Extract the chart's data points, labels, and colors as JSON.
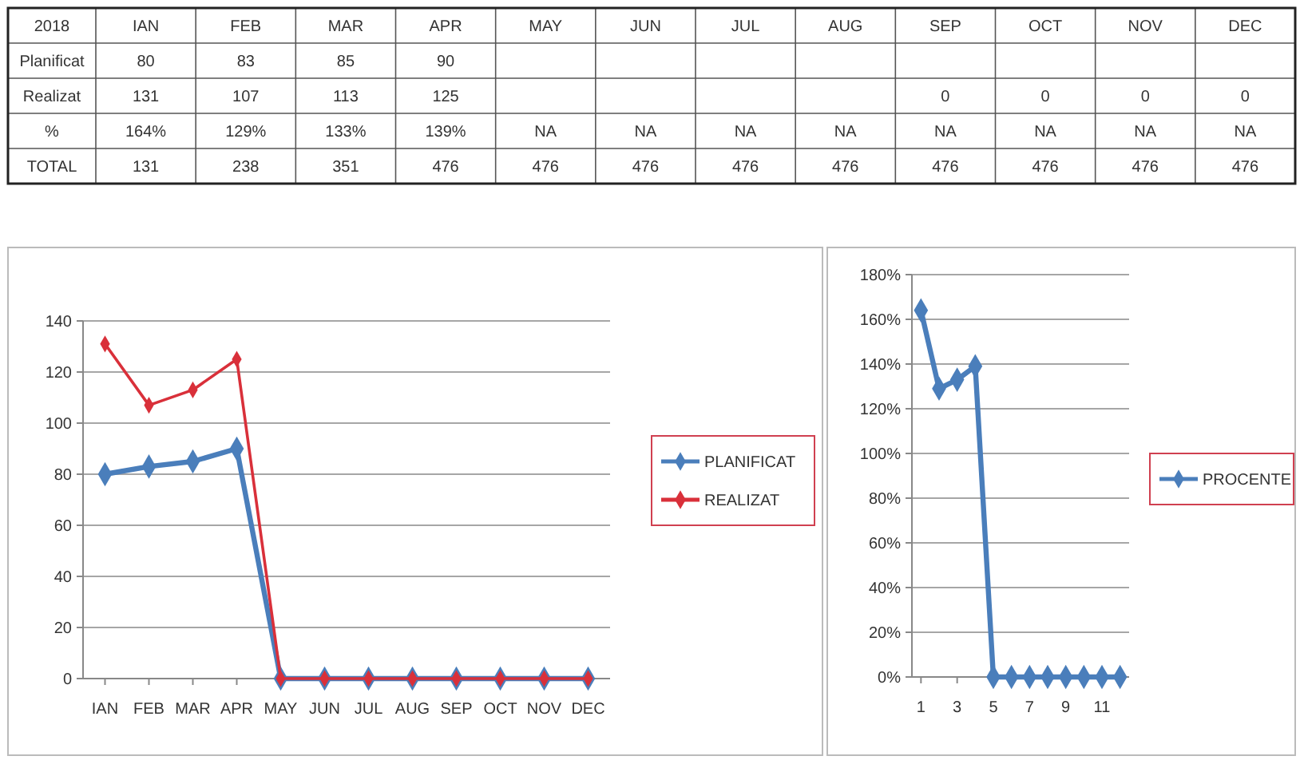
{
  "chart_data": [
    {
      "type": "other",
      "title": "2018",
      "categories": [
        "IAN",
        "FEB",
        "MAR",
        "APR",
        "MAY",
        "JUN",
        "JUL",
        "AUG",
        "SEP",
        "OCT",
        "NOV",
        "DEC"
      ],
      "y_categories": [
        "Planificat",
        "Realizat",
        "%",
        "TOTAL"
      ],
      "cell_labels": [
        [
          "80",
          "83",
          "85",
          "90",
          null,
          null,
          null,
          null,
          null,
          null,
          null,
          null
        ],
        [
          "131",
          "107",
          "113",
          "125",
          null,
          null,
          null,
          null,
          "0",
          "0",
          "0",
          "0"
        ],
        [
          "164%",
          "129%",
          "133%",
          "139%",
          "NA",
          "NA",
          "NA",
          "NA",
          "NA",
          "NA",
          "NA",
          "NA"
        ],
        [
          "131",
          "238",
          "351",
          "476",
          "476",
          "476",
          "476",
          "476",
          "476",
          "476",
          "476",
          "476"
        ]
      ]
    },
    {
      "type": "line",
      "categories": [
        "IAN",
        "FEB",
        "MAR",
        "APR",
        "MAY",
        "JUN",
        "JUL",
        "AUG",
        "SEP",
        "OCT",
        "NOV",
        "DEC"
      ],
      "series": [
        {
          "name": "PLANIFICAT",
          "color": "#4a7ebb",
          "values": [
            80,
            83,
            85,
            90,
            0,
            0,
            0,
            0,
            0,
            0,
            0,
            0
          ]
        },
        {
          "name": "REALIZAT",
          "color": "#d9303a",
          "values": [
            131,
            107,
            113,
            125,
            0,
            0,
            0,
            0,
            0,
            0,
            0,
            0
          ]
        }
      ],
      "ylim": [
        0,
        140
      ],
      "yticks": [
        0,
        20,
        40,
        60,
        80,
        100,
        120,
        140
      ],
      "grid": "y",
      "legend": "right",
      "marker": "diamond"
    },
    {
      "type": "line",
      "x": [
        1,
        2,
        3,
        4,
        5,
        6,
        7,
        8,
        9,
        10,
        11,
        12
      ],
      "series": [
        {
          "name": "PROCENTE",
          "color": "#4a7ebb",
          "values": [
            164,
            129,
            133,
            139,
            0,
            0,
            0,
            0,
            0,
            0,
            0,
            0
          ]
        }
      ],
      "xlim": [
        0.5,
        12.5
      ],
      "xticks": [
        1,
        3,
        5,
        7,
        9,
        11
      ],
      "ylim": [
        0,
        180
      ],
      "yticks": [
        {
          "value": 0,
          "label": "0%"
        },
        {
          "value": 20,
          "label": "20%"
        },
        {
          "value": 40,
          "label": "40%"
        },
        {
          "value": 60,
          "label": "60%"
        },
        {
          "value": 80,
          "label": "80%"
        },
        {
          "value": 100,
          "label": "100%"
        },
        {
          "value": 120,
          "label": "120%"
        },
        {
          "value": 140,
          "label": "140%"
        },
        {
          "value": 160,
          "label": "160%"
        },
        {
          "value": 180,
          "label": "180%"
        }
      ],
      "grid": "y",
      "legend": "right",
      "marker": "diamond"
    }
  ]
}
